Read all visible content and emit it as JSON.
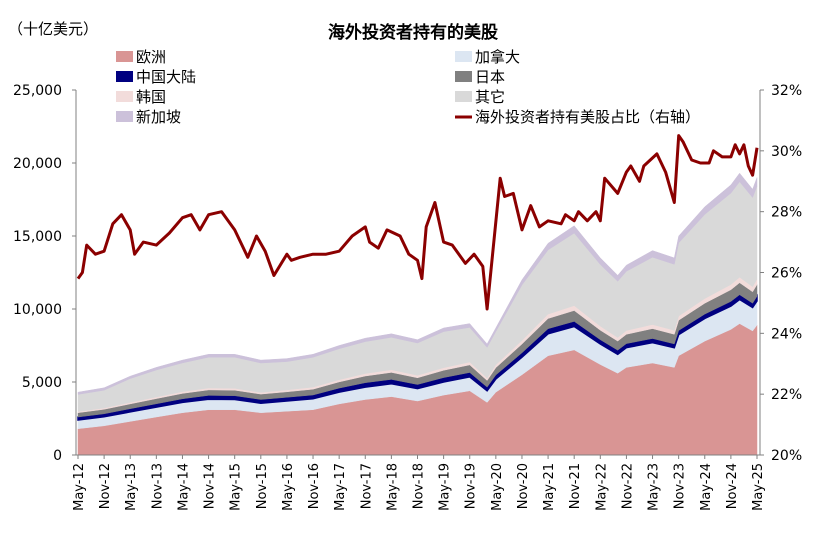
{
  "chart_data": {
    "type": "area",
    "stacked": true,
    "title": "海外投资者持有的美股",
    "unit_label": "（十亿美元）",
    "ylim": [
      0,
      25000
    ],
    "yticks": [
      "0",
      "5,000",
      "10,000",
      "15,000",
      "20,000",
      "25,000"
    ],
    "y2lim": [
      20,
      32
    ],
    "y2ticks": [
      "20%",
      "22%",
      "24%",
      "26%",
      "28%",
      "30%",
      "32%"
    ],
    "xticks": [
      "May-12",
      "Nov-12",
      "May-13",
      "Nov-13",
      "May-14",
      "Nov-14",
      "May-15",
      "Nov-15",
      "May-16",
      "Nov-16",
      "May-17",
      "Nov-17",
      "May-18",
      "Nov-18",
      "May-19",
      "Nov-19",
      "May-20",
      "Nov-20",
      "May-21",
      "Nov-21",
      "May-22",
      "Nov-22",
      "May-23",
      "Nov-23",
      "May-24",
      "Nov-24",
      "May-25"
    ],
    "grid": false,
    "legend_placement": "top",
    "x": [
      "2012-05",
      "2012-11",
      "2013-05",
      "2013-11",
      "2014-05",
      "2014-11",
      "2015-05",
      "2015-11",
      "2016-05",
      "2016-11",
      "2017-05",
      "2017-11",
      "2018-05",
      "2018-11",
      "2019-05",
      "2019-11",
      "2020-03",
      "2020-05",
      "2020-11",
      "2021-05",
      "2021-11",
      "2022-05",
      "2022-09",
      "2022-11",
      "2023-05",
      "2023-10",
      "2023-11",
      "2024-05",
      "2024-11",
      "2025-01",
      "2025-04",
      "2025-05"
    ],
    "series": [
      {
        "name": "欧洲",
        "color": "#d99594",
        "values": [
          1800,
          2000,
          2300,
          2600,
          2900,
          3100,
          3100,
          2900,
          3000,
          3100,
          3500,
          3800,
          4000,
          3700,
          4100,
          4400,
          3600,
          4300,
          5500,
          6800,
          7200,
          6200,
          5600,
          6000,
          6300,
          6000,
          6800,
          7800,
          8600,
          9000,
          8500,
          8900
        ]
      },
      {
        "name": "加拿大",
        "color": "#dce6f2",
        "values": [
          600,
          620,
          650,
          680,
          700,
          720,
          700,
          650,
          700,
          750,
          800,
          850,
          880,
          850,
          900,
          950,
          800,
          900,
          1200,
          1500,
          1600,
          1400,
          1300,
          1350,
          1400,
          1350,
          1450,
          1550,
          1600,
          1650,
          1600,
          1650
        ]
      },
      {
        "name": "中国大陆",
        "color": "#000080",
        "values": [
          200,
          200,
          220,
          230,
          250,
          260,
          260,
          250,
          250,
          260,
          280,
          300,
          300,
          280,
          300,
          300,
          250,
          280,
          300,
          350,
          350,
          300,
          280,
          280,
          280,
          260,
          280,
          300,
          320,
          330,
          300,
          320
        ]
      },
      {
        "name": "日本",
        "color": "#808080",
        "values": [
          300,
          310,
          330,
          350,
          370,
          380,
          380,
          370,
          380,
          400,
          430,
          460,
          480,
          460,
          500,
          520,
          450,
          500,
          600,
          700,
          750,
          650,
          620,
          640,
          680,
          660,
          700,
          750,
          800,
          820,
          780,
          800
        ]
      },
      {
        "name": "韩国",
        "color": "#f2dcdb",
        "values": [
          80,
          90,
          100,
          110,
          120,
          130,
          130,
          120,
          130,
          140,
          150,
          170,
          180,
          170,
          180,
          200,
          170,
          200,
          250,
          300,
          330,
          280,
          250,
          260,
          280,
          270,
          290,
          320,
          360,
          380,
          350,
          380
        ]
      },
      {
        "name": "其它",
        "color": "#d9d9d9",
        "values": [
          1170,
          1220,
          1630,
          1850,
          1970,
          2110,
          2130,
          2010,
          1940,
          2040,
          2120,
          2190,
          2220,
          2210,
          2470,
          2370,
          2100,
          2270,
          3800,
          4400,
          4970,
          4220,
          3850,
          4050,
          4610,
          4520,
          5010,
          5760,
          6260,
          6540,
          6110,
          6370
        ]
      },
      {
        "name": "新加坡",
        "color": "#ccc1da",
        "values": [
          150,
          160,
          170,
          180,
          190,
          200,
          200,
          200,
          200,
          210,
          220,
          230,
          240,
          230,
          250,
          260,
          230,
          250,
          350,
          450,
          500,
          450,
          400,
          420,
          450,
          440,
          470,
          520,
          560,
          580,
          560,
          580
        ]
      }
    ],
    "line": {
      "name": "海外投资者持有美股占比（右轴）",
      "color": "#8b0000",
      "axis": "right",
      "x": [
        "2012-05",
        "2012-06",
        "2012-07",
        "2012-09",
        "2012-11",
        "2013-01",
        "2013-03",
        "2013-05",
        "2013-06",
        "2013-08",
        "2013-11",
        "2014-02",
        "2014-05",
        "2014-07",
        "2014-09",
        "2014-11",
        "2015-02",
        "2015-05",
        "2015-08",
        "2015-10",
        "2015-12",
        "2016-02",
        "2016-05",
        "2016-06",
        "2016-08",
        "2016-11",
        "2017-02",
        "2017-05",
        "2017-08",
        "2017-11",
        "2017-12",
        "2018-02",
        "2018-04",
        "2018-07",
        "2018-09",
        "2018-11",
        "2018-12",
        "2019-01",
        "2019-03",
        "2019-05",
        "2019-07",
        "2019-10",
        "2019-12",
        "2020-02",
        "2020-03",
        "2020-06",
        "2020-07",
        "2020-09",
        "2020-11",
        "2021-01",
        "2021-03",
        "2021-05",
        "2021-08",
        "2021-09",
        "2021-11",
        "2021-12",
        "2022-02",
        "2022-04",
        "2022-05",
        "2022-06",
        "2022-09",
        "2022-11",
        "2022-12",
        "2023-02",
        "2023-03",
        "2023-06",
        "2023-08",
        "2023-10",
        "2023-11",
        "2023-12",
        "2024-02",
        "2024-04",
        "2024-06",
        "2024-07",
        "2024-09",
        "2024-11",
        "2024-12",
        "2025-01",
        "2025-02",
        "2025-03",
        "2025-04",
        "2025-05"
      ],
      "values": [
        25.8,
        26.0,
        26.9,
        26.6,
        26.7,
        27.6,
        27.9,
        27.4,
        26.6,
        27.0,
        26.9,
        27.3,
        27.8,
        27.9,
        27.4,
        27.9,
        28.0,
        27.4,
        26.5,
        27.2,
        26.7,
        25.9,
        26.6,
        26.4,
        26.5,
        26.6,
        26.6,
        26.7,
        27.2,
        27.5,
        27.0,
        26.8,
        27.4,
        27.2,
        26.6,
        26.4,
        25.8,
        27.5,
        28.3,
        27.0,
        26.9,
        26.3,
        26.6,
        26.2,
        24.8,
        29.1,
        28.5,
        28.6,
        27.4,
        28.2,
        27.5,
        27.7,
        27.6,
        27.9,
        27.7,
        28.0,
        27.7,
        28.0,
        27.7,
        29.1,
        28.6,
        29.3,
        29.5,
        29.0,
        29.5,
        29.9,
        29.3,
        28.3,
        30.5,
        30.3,
        29.7,
        29.6,
        29.6,
        30.0,
        29.8,
        29.8,
        30.2,
        29.9,
        30.2,
        29.5,
        29.2,
        30.1
      ]
    }
  }
}
